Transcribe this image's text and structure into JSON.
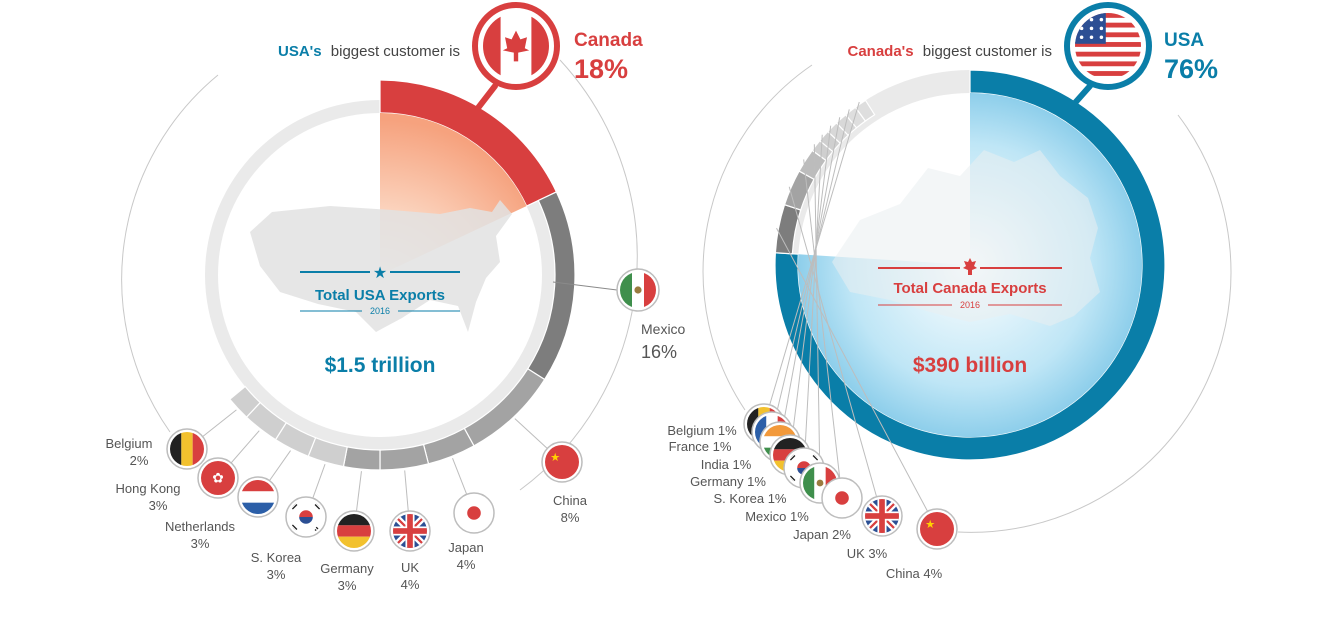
{
  "colors": {
    "usa_blue": "#0a7ea8",
    "canada_red": "#d83f3f",
    "ring_gray": "#eaeaea",
    "segment_dark": "#7d7d7d",
    "segment_mid": "#a3a3a3",
    "segment_light": "#cfcfcf",
    "thin_line": "#bdbdbd",
    "label_gray": "#555555"
  },
  "chart_data": [
    {
      "type": "pie",
      "header_prefix": "USA's",
      "header_suffix": "biggest customer is",
      "biggest_customer": {
        "name": "Canada",
        "pct_label": "18%",
        "flag": "canada-flag-icon"
      },
      "center": {
        "title": "Total USA Exports",
        "year": "2016",
        "value": "$1.5 trillion",
        "emblem": "star-icon"
      },
      "segments": [
        {
          "name": "Canada",
          "value": 18,
          "pct_label": "18%",
          "flag": "canada-flag-icon"
        },
        {
          "name": "Mexico",
          "value": 16,
          "pct_label": "16%",
          "flag": "mexico-flag-icon"
        },
        {
          "name": "China",
          "value": 8,
          "pct_label": "8%",
          "flag": "china-flag-icon"
        },
        {
          "name": "Japan",
          "value": 4,
          "pct_label": "4%",
          "flag": "japan-flag-icon"
        },
        {
          "name": "UK",
          "value": 4,
          "pct_label": "4%",
          "flag": "uk-flag-icon"
        },
        {
          "name": "Germany",
          "value": 3,
          "pct_label": "3%",
          "flag": "germany-flag-icon"
        },
        {
          "name": "S. Korea",
          "value": 3,
          "pct_label": "3%",
          "flag": "korea-flag-icon"
        },
        {
          "name": "Netherlands",
          "value": 3,
          "pct_label": "3%",
          "flag": "netherlands-flag-icon"
        },
        {
          "name": "Hong Kong",
          "value": 3,
          "pct_label": "3%",
          "flag": "hongkong-flag-icon"
        },
        {
          "name": "Belgium",
          "value": 2,
          "pct_label": "2%",
          "flag": "belgium-flag-icon"
        }
      ]
    },
    {
      "type": "pie",
      "header_prefix": "Canada's",
      "header_suffix": "biggest customer is",
      "biggest_customer": {
        "name": "USA",
        "pct_label": "76%",
        "flag": "usa-flag-icon"
      },
      "center": {
        "title": "Total Canada Exports",
        "year": "2016",
        "value": "$390 billion",
        "emblem": "maple-leaf-icon"
      },
      "segments": [
        {
          "name": "USA",
          "value": 76,
          "pct_label": "76%",
          "flag": "usa-flag-icon"
        },
        {
          "name": "China",
          "value": 4,
          "label": "China 4%",
          "flag": "china-flag-icon"
        },
        {
          "name": "UK",
          "value": 3,
          "label": "UK 3%",
          "flag": "uk-flag-icon"
        },
        {
          "name": "Japan",
          "value": 2,
          "label": "Japan 2%",
          "flag": "japan-flag-icon"
        },
        {
          "name": "Mexico",
          "value": 1,
          "label": "Mexico 1%",
          "flag": "mexico-flag-icon"
        },
        {
          "name": "S. Korea",
          "value": 1,
          "label": "S. Korea 1%",
          "flag": "korea-flag-icon"
        },
        {
          "name": "Germany",
          "value": 1,
          "label": "Germany 1%",
          "flag": "germany-flag-icon"
        },
        {
          "name": "India",
          "value": 1,
          "label": "India 1%",
          "flag": "india-flag-icon"
        },
        {
          "name": "France",
          "value": 1,
          "label": "France 1%",
          "flag": "france-flag-icon"
        },
        {
          "name": "Belgium",
          "value": 1,
          "label": "Belgium 1%",
          "flag": "belgium-flag-icon"
        }
      ]
    }
  ]
}
